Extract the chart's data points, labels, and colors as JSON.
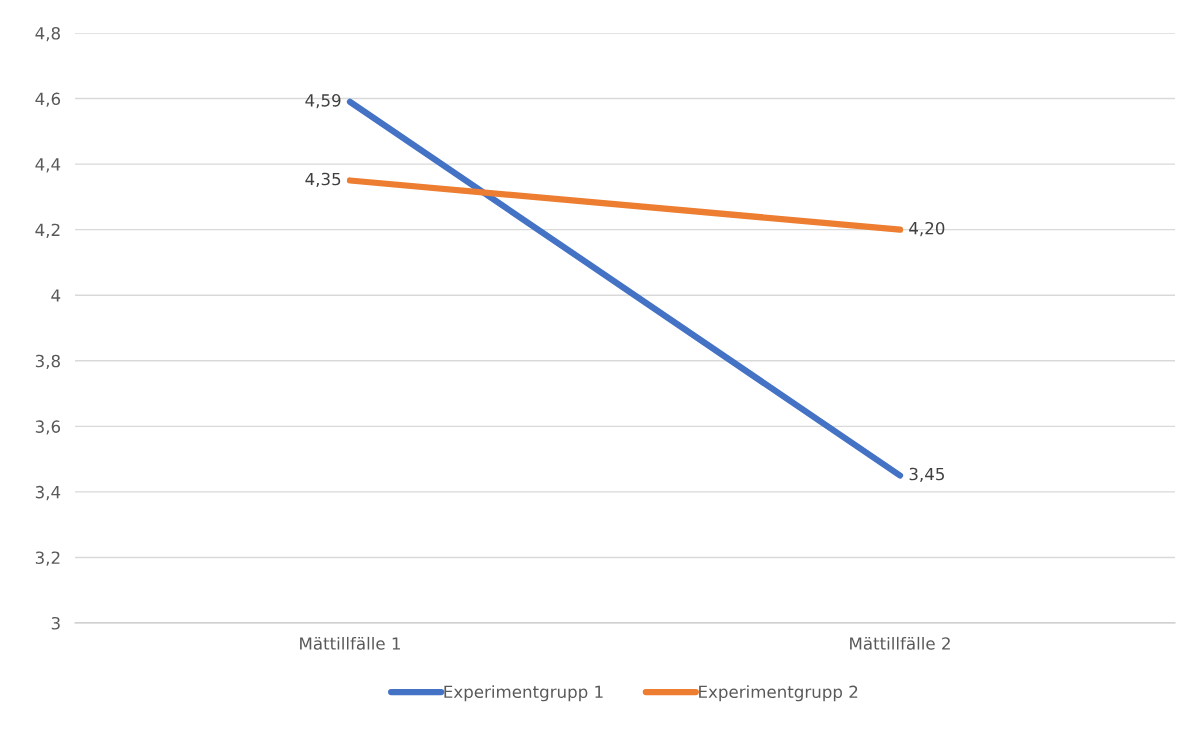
{
  "chart_data": {
    "type": "line",
    "categories": [
      "Mättillfälle 1",
      "Mättillfälle 2"
    ],
    "series": [
      {
        "name": "Experimentgrupp 1",
        "color": "#4472c4",
        "values": [
          4.59,
          3.45
        ],
        "value_labels": [
          "4,59",
          "3,45"
        ]
      },
      {
        "name": "Experimentgrupp 2",
        "color": "#ed7d31",
        "values": [
          4.35,
          4.2
        ],
        "value_labels": [
          "4,35",
          "4,20"
        ]
      }
    ],
    "ylim": [
      3,
      4.8
    ],
    "yticks": [
      3,
      {
        "value": 3.2,
        "label": "3,2"
      },
      {
        "value": 3.4,
        "label": "3,4"
      },
      {
        "value": 3.6,
        "label": "3,6"
      },
      {
        "value": 3.8,
        "label": "3,8"
      },
      4,
      {
        "value": 4.2,
        "label": "4,2"
      },
      {
        "value": 4.4,
        "label": "4,4"
      },
      {
        "value": 4.6,
        "label": "4,6"
      },
      {
        "value": 4.8,
        "label": "4,8"
      }
    ],
    "grid": "y",
    "legend": "bottom",
    "marker": "none",
    "line_style": "solid"
  }
}
